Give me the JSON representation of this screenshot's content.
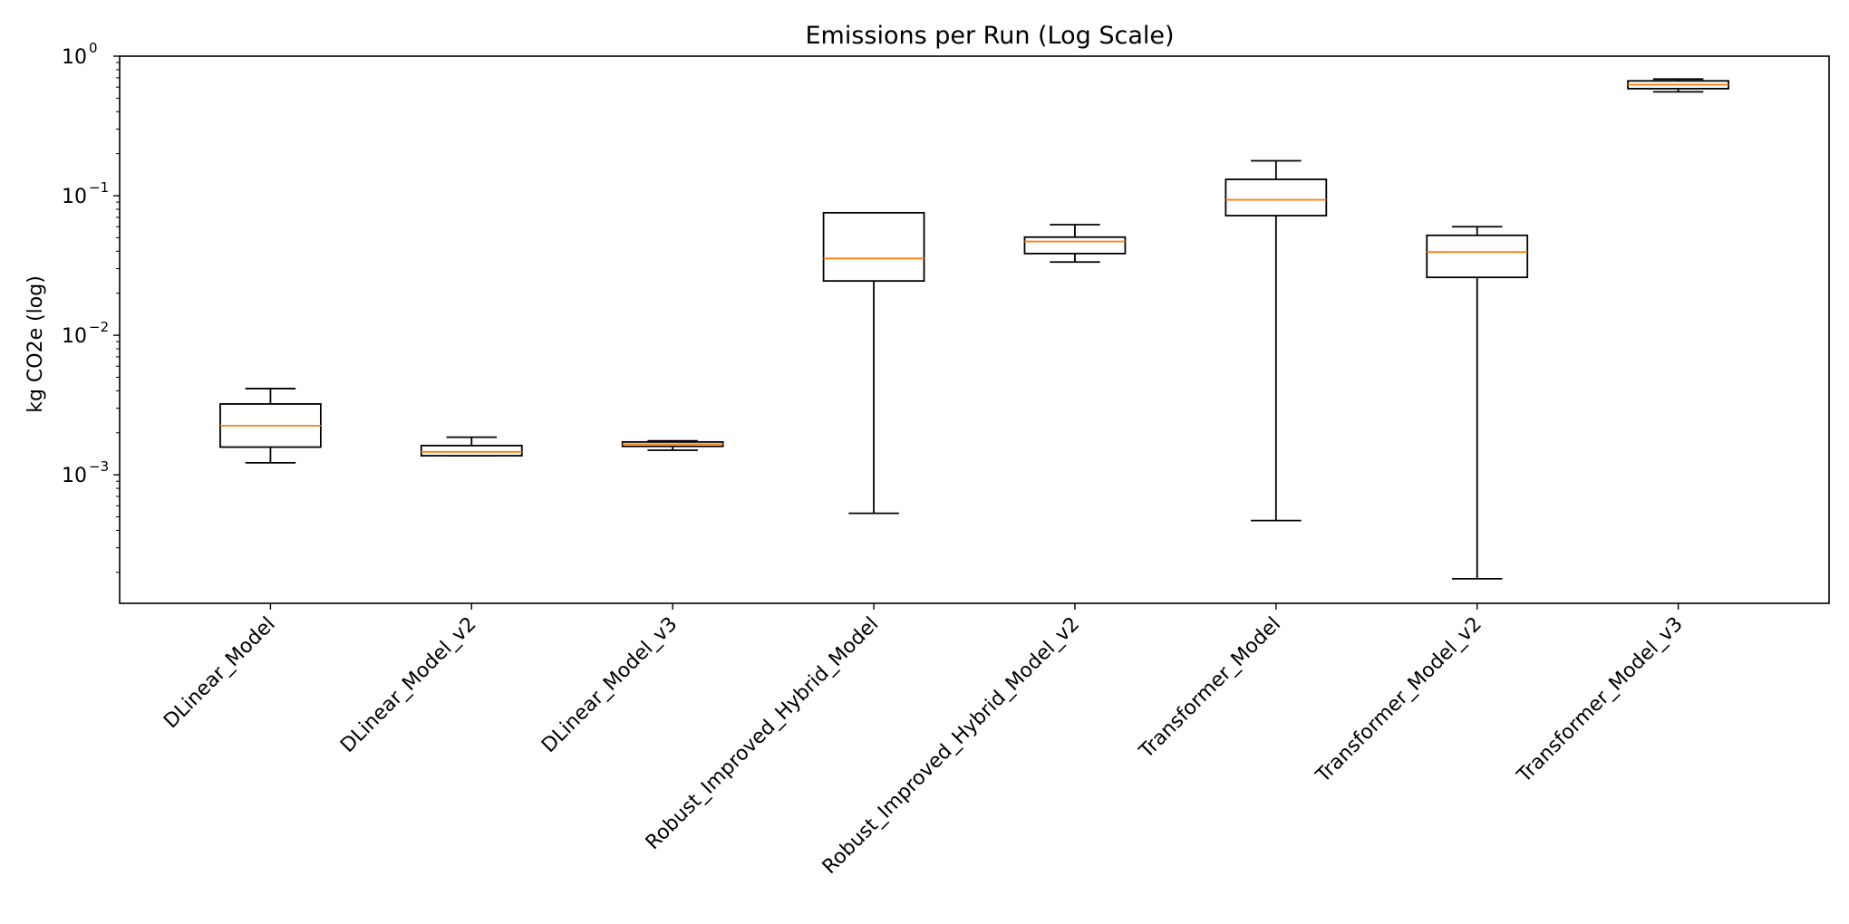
{
  "chart_data": {
    "type": "box",
    "title": "Emissions per Run (Log Scale)",
    "xlabel": "",
    "ylabel": "kg CO2e (log)",
    "yscale": "log",
    "ylim": [
      0.00012,
      1.0
    ],
    "y_ticks": [
      {
        "base": "10",
        "exp": "−3",
        "value": 0.001
      },
      {
        "base": "10",
        "exp": "−2",
        "value": 0.01
      },
      {
        "base": "10",
        "exp": "−1",
        "value": 0.1
      },
      {
        "base": "10",
        "exp": "0",
        "value": 1.0
      }
    ],
    "categories": [
      "DLinear_Model",
      "DLinear_Model_v2",
      "DLinear_Model_v3",
      "Robust_Improved_Hybrid_Model",
      "Robust_Improved_Hybrid_Model_v2",
      "Transformer_Model",
      "Transformer_Model_v2",
      "Transformer_Model_v3"
    ],
    "boxes": [
      {
        "whisker_low": 0.00122,
        "q1": 0.00158,
        "median": 0.00225,
        "q3": 0.00322,
        "whisker_high": 0.00415
      },
      {
        "whisker_low": 0.00137,
        "q1": 0.00137,
        "median": 0.00146,
        "q3": 0.00162,
        "whisker_high": 0.00186
      },
      {
        "whisker_low": 0.0015,
        "q1": 0.0016,
        "median": 0.00166,
        "q3": 0.00172,
        "whisker_high": 0.00175
      },
      {
        "whisker_low": 0.00053,
        "q1": 0.0245,
        "median": 0.0355,
        "q3": 0.0755,
        "whisker_high": 0.0755
      },
      {
        "whisker_low": 0.0335,
        "q1": 0.0385,
        "median": 0.047,
        "q3": 0.0505,
        "whisker_high": 0.062
      },
      {
        "whisker_low": 0.00047,
        "q1": 0.072,
        "median": 0.0935,
        "q3": 0.131,
        "whisker_high": 0.178
      },
      {
        "whisker_low": 0.00018,
        "q1": 0.026,
        "median": 0.0395,
        "q3": 0.052,
        "whisker_high": 0.06
      },
      {
        "whisker_low": 0.555,
        "q1": 0.585,
        "median": 0.625,
        "q3": 0.665,
        "whisker_high": 0.685
      }
    ],
    "colors": {
      "box": "#000000",
      "median": "#ff7f0e"
    },
    "grid": false,
    "legend": "none"
  }
}
